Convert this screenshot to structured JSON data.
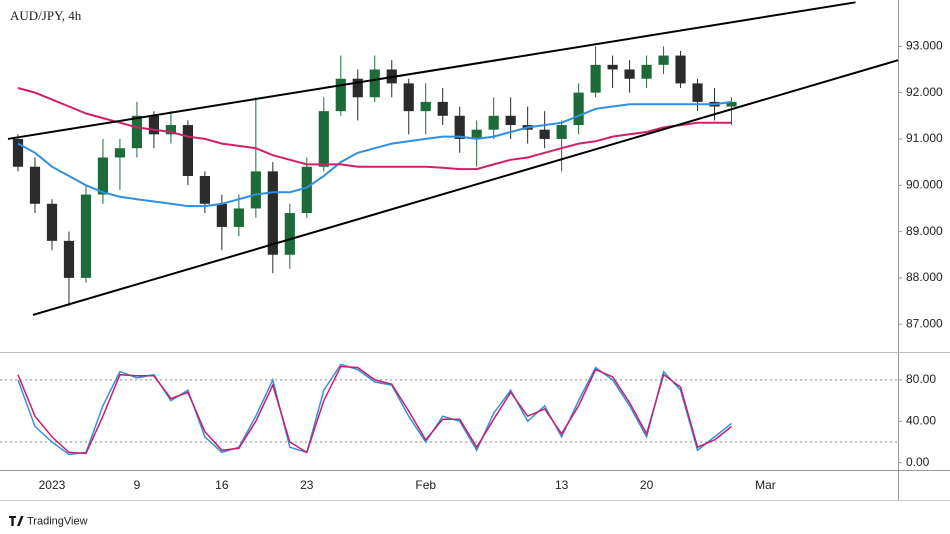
{
  "chart_data": [
    {
      "type": "candlestick",
      "title": "AUD/JPY, 4h",
      "x": [
        -2,
        -1,
        0,
        1,
        2,
        3,
        4,
        5,
        6,
        7,
        8,
        9,
        10,
        11,
        12,
        13,
        14,
        15,
        16,
        17,
        18,
        19,
        20,
        21,
        22,
        23,
        24,
        25,
        26,
        27,
        28,
        29,
        30,
        31,
        32,
        33,
        34,
        35,
        36,
        37,
        38,
        39,
        40
      ],
      "open": [
        91.0,
        90.4,
        89.6,
        88.8,
        88.0,
        89.8,
        90.6,
        90.8,
        91.5,
        91.1,
        91.3,
        90.2,
        89.6,
        89.1,
        89.5,
        90.3,
        88.5,
        89.4,
        90.4,
        91.6,
        92.3,
        91.9,
        92.5,
        92.2,
        91.6,
        91.8,
        91.5,
        91.0,
        91.2,
        91.5,
        91.3,
        91.2,
        91.0,
        91.3,
        92.0,
        92.6,
        92.5,
        92.3,
        92.6,
        92.8,
        92.2,
        91.8,
        91.7
      ],
      "high": [
        91.1,
        90.6,
        89.7,
        89.0,
        90.0,
        91.0,
        91.0,
        91.8,
        91.6,
        91.6,
        91.4,
        90.3,
        89.8,
        89.8,
        91.9,
        90.5,
        89.6,
        90.6,
        91.9,
        92.8,
        92.5,
        92.8,
        92.7,
        92.3,
        92.2,
        92.1,
        91.7,
        91.4,
        91.9,
        91.9,
        91.7,
        91.6,
        91.4,
        92.2,
        93.0,
        92.8,
        92.7,
        92.8,
        93.0,
        92.9,
        92.3,
        92.1,
        91.9
      ],
      "low": [
        90.3,
        89.4,
        88.6,
        87.4,
        87.9,
        89.6,
        89.9,
        90.6,
        90.8,
        90.9,
        90.0,
        89.4,
        88.6,
        88.9,
        89.3,
        88.1,
        88.2,
        89.3,
        90.3,
        91.5,
        91.4,
        91.8,
        91.9,
        91.1,
        91.1,
        91.3,
        90.7,
        90.4,
        91.0,
        91.0,
        90.9,
        90.8,
        90.3,
        91.1,
        91.9,
        92.1,
        92.0,
        92.1,
        92.4,
        92.1,
        91.6,
        91.4,
        91.3
      ],
      "close": [
        90.4,
        89.6,
        88.8,
        88.0,
        89.8,
        90.6,
        90.8,
        91.5,
        91.1,
        91.3,
        90.2,
        89.6,
        89.1,
        89.5,
        90.3,
        88.5,
        89.4,
        90.4,
        91.6,
        92.3,
        91.9,
        92.5,
        92.2,
        91.6,
        91.8,
        91.5,
        91.0,
        91.2,
        91.5,
        91.3,
        91.2,
        91.0,
        91.3,
        92.0,
        92.6,
        92.5,
        92.3,
        92.6,
        92.8,
        92.2,
        91.8,
        91.7,
        91.8
      ],
      "up_color": "#1e6b3a",
      "down_color": "#2b2b2b",
      "overlays": [
        {
          "color": "#2f8fe0",
          "values": [
            90.9,
            90.7,
            90.4,
            90.2,
            90.0,
            89.85,
            89.75,
            89.7,
            89.65,
            89.6,
            89.55,
            89.55,
            89.6,
            89.7,
            89.8,
            89.85,
            89.85,
            89.95,
            90.2,
            90.5,
            90.7,
            90.8,
            90.9,
            90.95,
            91.0,
            91.05,
            91.05,
            91.0,
            91.05,
            91.15,
            91.25,
            91.3,
            91.35,
            91.5,
            91.65,
            91.7,
            91.75,
            91.75,
            91.75,
            91.75,
            91.75,
            91.75,
            91.8
          ]
        },
        {
          "color": "#d0206a",
          "values": [
            92.1,
            92.0,
            91.85,
            91.7,
            91.55,
            91.45,
            91.35,
            91.25,
            91.2,
            91.15,
            91.05,
            91.0,
            90.9,
            90.85,
            90.8,
            90.65,
            90.55,
            90.45,
            90.45,
            90.45,
            90.4,
            90.4,
            90.4,
            90.4,
            90.4,
            90.38,
            90.35,
            90.35,
            90.45,
            90.55,
            90.6,
            90.7,
            90.8,
            90.9,
            90.95,
            91.05,
            91.1,
            91.15,
            91.25,
            91.3,
            91.35,
            91.35,
            91.35
          ]
        }
      ],
      "trendlines": [
        {
          "x": [
            -2.59,
            47.3
          ],
          "y": [
            91.0,
            93.95
          ]
        },
        {
          "x": [
            -1.12,
            49.8
          ],
          "y": [
            87.2,
            92.7
          ]
        }
      ],
      "xlim": [
        -3.06,
        49.8
      ],
      "xticks": [
        {
          "value": 0,
          "label": "2023"
        },
        {
          "value": 5,
          "label": "9"
        },
        {
          "value": 10,
          "label": "16"
        },
        {
          "value": 15,
          "label": "23"
        },
        {
          "value": 22,
          "label": "Feb"
        },
        {
          "value": 30,
          "label": "13"
        },
        {
          "value": 35,
          "label": "20"
        },
        {
          "value": 42,
          "label": "Mar"
        }
      ],
      "ylim": [
        86.4,
        94.0
      ],
      "yticks": [
        {
          "value": 87,
          "label": "87.000"
        },
        {
          "value": 88,
          "label": "88.000"
        },
        {
          "value": 89,
          "label": "89.000"
        },
        {
          "value": 90,
          "label": "90.000"
        },
        {
          "value": 91,
          "label": "91.000"
        },
        {
          "value": 92,
          "label": "92.000"
        },
        {
          "value": 93,
          "label": "93.000"
        }
      ]
    },
    {
      "type": "line",
      "series": [
        {
          "color": "#3a8fd8",
          "values": [
            80,
            35,
            20,
            8,
            10,
            55,
            88,
            82,
            85,
            60,
            70,
            25,
            10,
            15,
            45,
            80,
            15,
            10,
            70,
            95,
            90,
            78,
            75,
            45,
            20,
            45,
            40,
            12,
            48,
            70,
            40,
            55,
            25,
            60,
            92,
            80,
            55,
            25,
            88,
            70,
            12,
            25,
            38
          ]
        },
        {
          "color": "#c81e6e",
          "values": [
            85,
            45,
            25,
            10,
            9,
            45,
            85,
            84,
            84,
            62,
            68,
            30,
            12,
            14,
            40,
            75,
            20,
            10,
            60,
            93,
            92,
            80,
            76,
            50,
            22,
            42,
            42,
            15,
            42,
            68,
            45,
            52,
            28,
            55,
            90,
            83,
            58,
            28,
            85,
            73,
            15,
            22,
            35
          ]
        }
      ],
      "levels": [
        80,
        20
      ],
      "ylim": [
        -7,
        106
      ],
      "yticks": [
        {
          "value": 0,
          "label": "0.00"
        },
        {
          "value": 40,
          "label": "40.00"
        },
        {
          "value": 80,
          "label": "80.00"
        }
      ]
    }
  ],
  "footer": "TradingView"
}
